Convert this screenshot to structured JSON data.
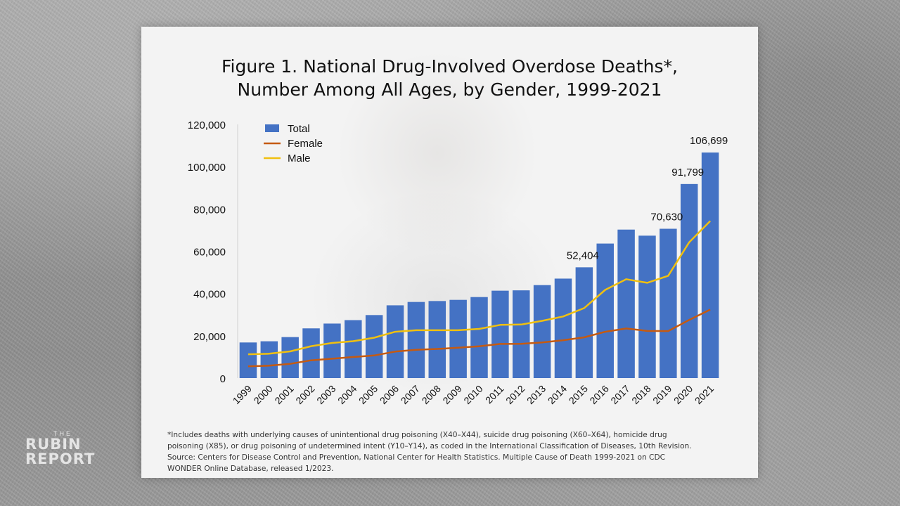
{
  "logo": {
    "the": "THE",
    "line1": "RUBIN",
    "line2": "REPORT"
  },
  "slide": {
    "title_line1": "Figure 1. National Drug-Involved Overdose Deaths*,",
    "title_line2": "Number Among All Ages, by Gender, 1999-2021",
    "footnote_lines": [
      "*Includes deaths with underlying causes of unintentional drug poisoning (X40–X44), suicide drug poisoning (X60–X64), homicide drug",
      "poisoning (X85), or drug poisoning of undetermined intent (Y10–Y14), as coded in the International Classification of Diseases, 10th Revision.",
      "Source: Centers for Disease Control and Prevention, National Center for Health Statistics. Multiple Cause of Death 1999-2021 on CDC",
      "WONDER Online Database, released 1/2023."
    ]
  },
  "chart_data": {
    "type": "bar",
    "title": "Figure 1. National Drug-Involved Overdose Deaths*, Number Among All Ages, by Gender, 1999-2021",
    "xlabel": "",
    "ylabel": "",
    "categories": [
      "1999",
      "2000",
      "2001",
      "2002",
      "2003",
      "2004",
      "2005",
      "2006",
      "2007",
      "2008",
      "2009",
      "2010",
      "2011",
      "2012",
      "2013",
      "2014",
      "2015",
      "2016",
      "2017",
      "2018",
      "2019",
      "2020",
      "2021"
    ],
    "ylim": [
      0,
      120000
    ],
    "yticks": [
      0,
      20000,
      40000,
      60000,
      80000,
      100000,
      120000
    ],
    "ytick_labels": [
      "0",
      "20,000",
      "40,000",
      "60,000",
      "80,000",
      "100,000",
      "120,000"
    ],
    "grid": false,
    "legend_position": "top-left",
    "series": [
      {
        "name": "Total",
        "type": "bar",
        "color": "#4472c4",
        "values": [
          16849,
          17415,
          19394,
          23518,
          25785,
          27424,
          29813,
          34425,
          36010,
          36450,
          37004,
          38329,
          41340,
          41502,
          43982,
          47055,
          52404,
          63632,
          70237,
          67367,
          70630,
          91799,
          106699
        ]
      },
      {
        "name": "Female",
        "type": "line",
        "color": "#c55a11",
        "values": [
          5591,
          5893,
          6750,
          8410,
          9179,
          9985,
          10708,
          12517,
          13386,
          13799,
          14361,
          15072,
          16160,
          16186,
          16894,
          17909,
          19280,
          21906,
          23467,
          22296,
          22225,
          27529,
          32398
        ]
      },
      {
        "name": "Male",
        "type": "line",
        "color": "#f0c010",
        "values": [
          11258,
          11522,
          12644,
          15108,
          16606,
          17439,
          19105,
          21908,
          22624,
          22651,
          22643,
          23257,
          25180,
          25316,
          27088,
          29146,
          33124,
          41726,
          46770,
          45071,
          48405,
          64270,
          74301
        ]
      }
    ],
    "data_labels": [
      {
        "category": "2015",
        "text": "52,404"
      },
      {
        "category": "2019",
        "text": "70,630"
      },
      {
        "category": "2020",
        "text": "91,799"
      },
      {
        "category": "2021",
        "text": "106,699"
      }
    ]
  }
}
